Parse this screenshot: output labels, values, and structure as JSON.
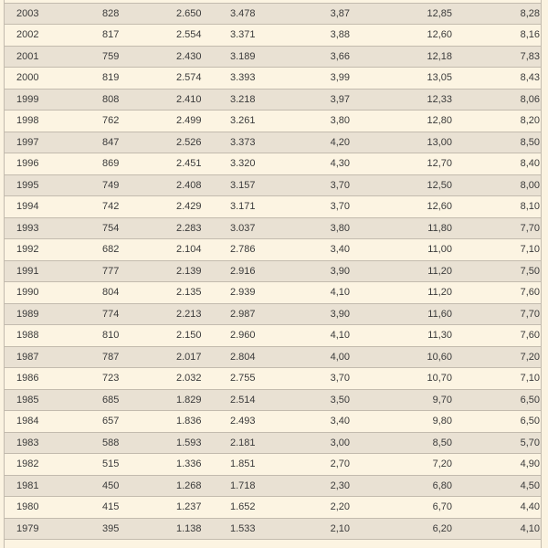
{
  "chart_data": {
    "type": "table",
    "headers_visible": false,
    "note": "cropped table: no column headers visible; first column is year",
    "rows": [
      [
        "2003",
        "828",
        "2.650",
        "3.478",
        "3,87",
        "12,85",
        "8,28"
      ],
      [
        "2002",
        "817",
        "2.554",
        "3.371",
        "3,88",
        "12,60",
        "8,16"
      ],
      [
        "2001",
        "759",
        "2.430",
        "3.189",
        "3,66",
        "12,18",
        "7,83"
      ],
      [
        "2000",
        "819",
        "2.574",
        "3.393",
        "3,99",
        "13,05",
        "8,43"
      ],
      [
        "1999",
        "808",
        "2.410",
        "3.218",
        "3,97",
        "12,33",
        "8,06"
      ],
      [
        "1998",
        "762",
        "2.499",
        "3.261",
        "3,80",
        "12,80",
        "8,20"
      ],
      [
        "1997",
        "847",
        "2.526",
        "3.373",
        "4,20",
        "13,00",
        "8,50"
      ],
      [
        "1996",
        "869",
        "2.451",
        "3.320",
        "4,30",
        "12,70",
        "8,40"
      ],
      [
        "1995",
        "749",
        "2.408",
        "3.157",
        "3,70",
        "12,50",
        "8,00"
      ],
      [
        "1994",
        "742",
        "2.429",
        "3.171",
        "3,70",
        "12,60",
        "8,10"
      ],
      [
        "1993",
        "754",
        "2.283",
        "3.037",
        "3,80",
        "11,80",
        "7,70"
      ],
      [
        "1992",
        "682",
        "2.104",
        "2.786",
        "3,40",
        "11,00",
        "7,10"
      ],
      [
        "1991",
        "777",
        "2.139",
        "2.916",
        "3,90",
        "11,20",
        "7,50"
      ],
      [
        "1990",
        "804",
        "2.135",
        "2.939",
        "4,10",
        "11,20",
        "7,60"
      ],
      [
        "1989",
        "774",
        "2.213",
        "2.987",
        "3,90",
        "11,60",
        "7,70"
      ],
      [
        "1988",
        "810",
        "2.150",
        "2.960",
        "4,10",
        "11,30",
        "7,60"
      ],
      [
        "1987",
        "787",
        "2.017",
        "2.804",
        "4,00",
        "10,60",
        "7,20"
      ],
      [
        "1986",
        "723",
        "2.032",
        "2.755",
        "3,70",
        "10,70",
        "7,10"
      ],
      [
        "1985",
        "685",
        "1.829",
        "2.514",
        "3,50",
        "9,70",
        "6,50"
      ],
      [
        "1984",
        "657",
        "1.836",
        "2.493",
        "3,40",
        "9,80",
        "6,50"
      ],
      [
        "1983",
        "588",
        "1.593",
        "2.181",
        "3,00",
        "8,50",
        "5,70"
      ],
      [
        "1982",
        "515",
        "1.336",
        "1.851",
        "2,70",
        "7,20",
        "4,90"
      ],
      [
        "1981",
        "450",
        "1.268",
        "1.718",
        "2,30",
        "6,80",
        "4,50"
      ],
      [
        "1980",
        "415",
        "1.237",
        "1.652",
        "2,20",
        "6,70",
        "4,40"
      ],
      [
        "1979",
        "395",
        "1.138",
        "1.533",
        "2,10",
        "6,20",
        "4,10"
      ]
    ]
  },
  "colors": {
    "row_dark": "#e9e1d3",
    "row_light": "#fcf4e2",
    "border": "#c3bbae",
    "text": "#3b3b3b",
    "page_background": "#fbf3e1"
  }
}
